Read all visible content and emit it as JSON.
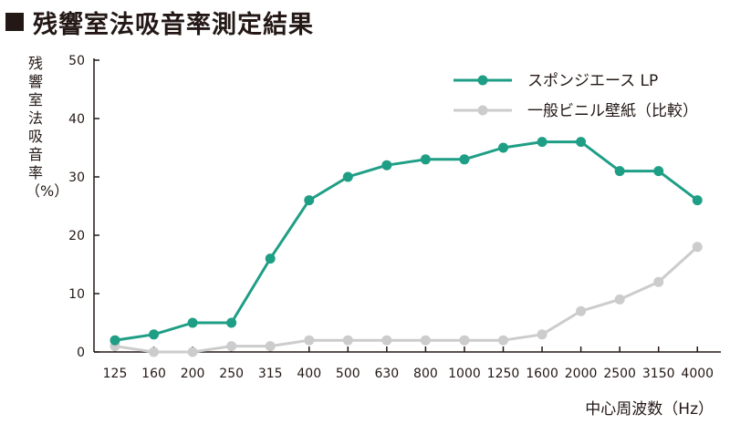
{
  "header": {
    "title": "残響室法吸音率測定結果"
  },
  "colors": {
    "series1": "#1f9e86",
    "series2": "#cccccc",
    "axis": "#231815"
  },
  "chart_data": {
    "type": "line",
    "title": "残響室法吸音率測定結果",
    "ylabel": "残響室法吸音率（%）",
    "xlabel": "中心周波数（Hz）",
    "categories": [
      "125",
      "160",
      "200",
      "250",
      "315",
      "400",
      "500",
      "630",
      "800",
      "1000",
      "1250",
      "1600",
      "2000",
      "2500",
      "3150",
      "4000"
    ],
    "ylim": [
      0,
      50
    ],
    "yticks": [
      "0",
      "10",
      "20",
      "30",
      "40",
      "50"
    ],
    "grid": false,
    "legend_position": "top-right",
    "series": [
      {
        "name": "スポンジエース LP",
        "color": "#1f9e86",
        "values": [
          2,
          3,
          5,
          5,
          16,
          26,
          30,
          32,
          33,
          33,
          35,
          36,
          36,
          31,
          31,
          26
        ]
      },
      {
        "name": "一般ビニル壁紙（比較）",
        "color": "#cccccc",
        "values": [
          1,
          0,
          0,
          1,
          1,
          2,
          2,
          2,
          2,
          2,
          2,
          3,
          7,
          9,
          12,
          18
        ]
      }
    ]
  }
}
